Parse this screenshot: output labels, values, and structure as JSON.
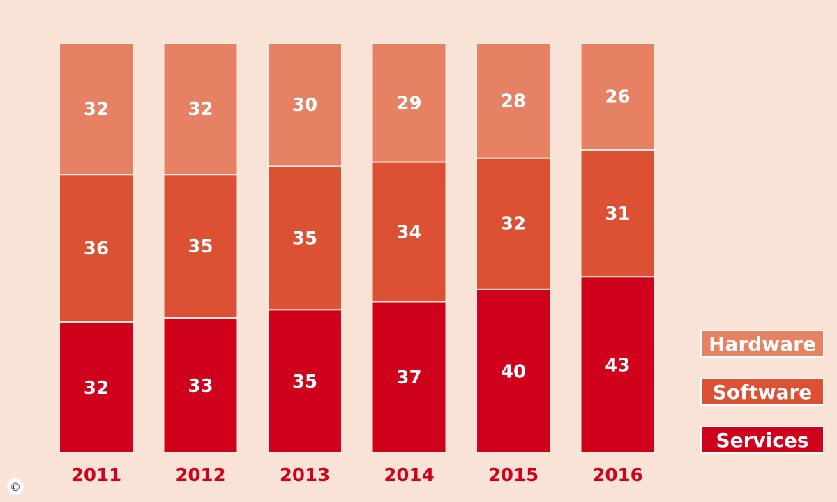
{
  "chart_data": {
    "type": "bar",
    "stacked": true,
    "categories": [
      "2011",
      "2012",
      "2013",
      "2014",
      "2015",
      "2016"
    ],
    "series": [
      {
        "name": "Services",
        "color": "#d0021b",
        "values": [
          32,
          33,
          35,
          37,
          40,
          43
        ]
      },
      {
        "name": "Software",
        "color": "#dc5034",
        "values": [
          36,
          35,
          35,
          34,
          32,
          31
        ]
      },
      {
        "name": "Hardware",
        "color": "#e68263",
        "values": [
          32,
          32,
          30,
          29,
          28,
          26
        ]
      }
    ],
    "legend": {
      "placement": "right-bottom",
      "order": [
        "Hardware",
        "Software",
        "Services"
      ]
    },
    "title": "",
    "xlabel": "",
    "ylabel": ""
  },
  "copyright_symbol": "©"
}
